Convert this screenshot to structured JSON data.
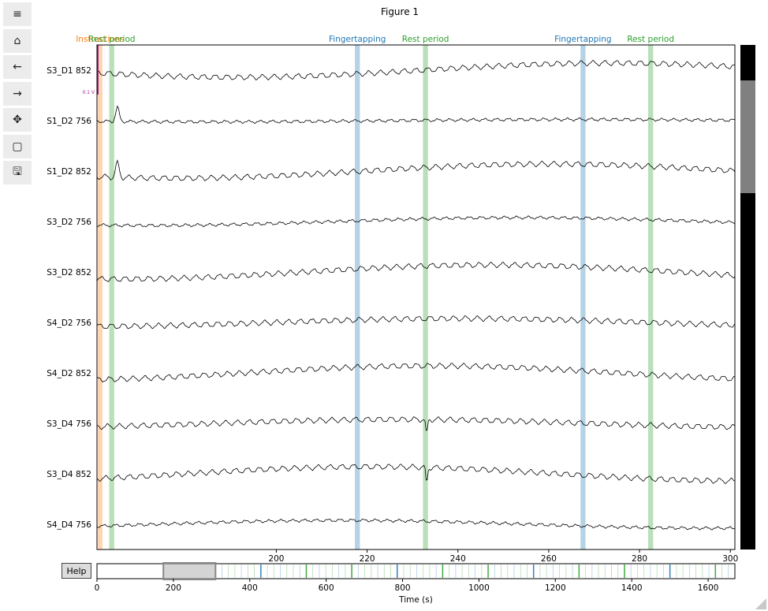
{
  "figure": {
    "title": "Figure 1"
  },
  "toolbar": [
    {
      "name": "menu",
      "glyph": "≡"
    },
    {
      "name": "home",
      "glyph": "⌂"
    },
    {
      "name": "back",
      "glyph": "←"
    },
    {
      "name": "forward",
      "glyph": "→"
    },
    {
      "name": "pan",
      "glyph": "✥"
    },
    {
      "name": "zoom-rect",
      "glyph": "▢"
    },
    {
      "name": "save",
      "glyph": "🖫"
    }
  ],
  "help_label": "Help",
  "scale_label": "0.1 V",
  "colors": {
    "rest": "#2ca02c",
    "finger": "#1f77b4",
    "instr": "#ff7f0e",
    "signal": "#000000",
    "scale": "#a0268a"
  },
  "chart_data": [
    {
      "type": "line",
      "xlim": [
        160.5,
        301
      ],
      "xticks": [
        200,
        220,
        240,
        260,
        280,
        300
      ],
      "channels": [
        "S3_D1 852",
        "S1_D2 756",
        "S1_D2 852",
        "S3_D2 756",
        "S3_D2 852",
        "S4_D2 756",
        "S4_D2 852",
        "S3_D4 756",
        "S3_D4 852",
        "S4_D4 756"
      ],
      "annotations": [
        {
          "label": "Instructions",
          "type": "instr",
          "start": 160.7,
          "end": 161.7
        },
        {
          "label": "Rest period",
          "type": "rest",
          "start": 163.2,
          "end": 164.3
        },
        {
          "label": "Fingertapping",
          "type": "finger",
          "start": 217.3,
          "end": 218.4
        },
        {
          "label": "Rest period",
          "type": "rest",
          "start": 232.3,
          "end": 233.4
        },
        {
          "label": "Fingertapping",
          "type": "finger",
          "start": 267.0,
          "end": 268.1
        },
        {
          "label": "Rest period",
          "type": "rest",
          "start": 281.9,
          "end": 283.0
        }
      ]
    },
    {
      "type": "timeline",
      "xlim": [
        0,
        1670
      ],
      "xlabel": "Time (s)",
      "xticks": [
        0,
        200,
        400,
        600,
        800,
        1000,
        1200,
        1400,
        1600
      ],
      "view_window": [
        180,
        300
      ]
    }
  ]
}
